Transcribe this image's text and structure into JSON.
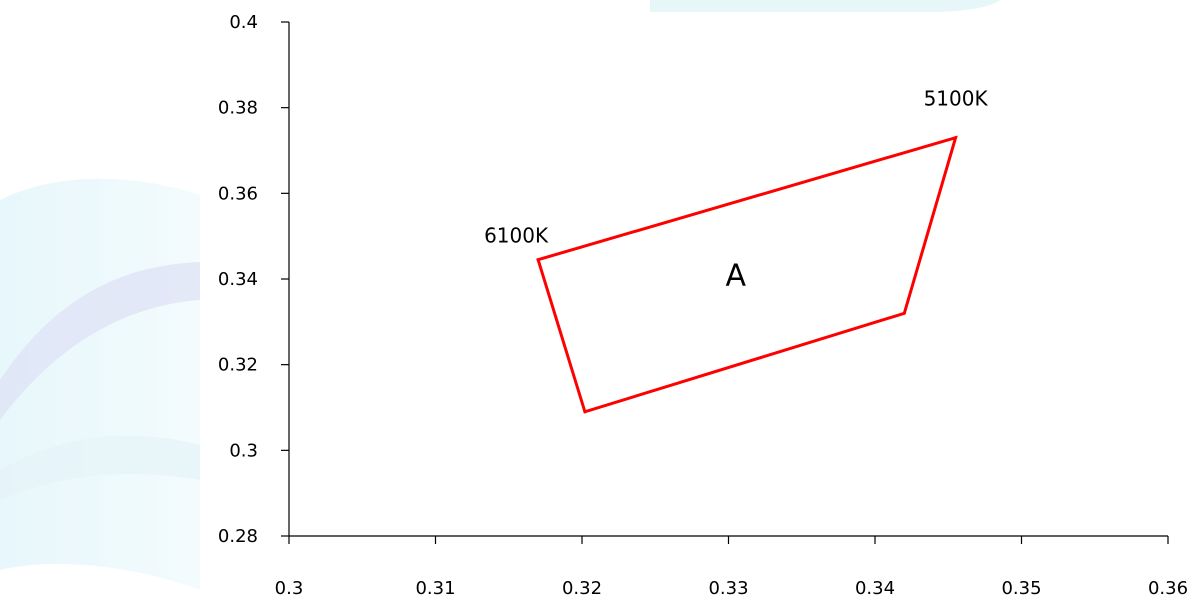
{
  "chart_data": {
    "type": "line",
    "title": "",
    "xlabel": "",
    "ylabel": "",
    "xlim": [
      0.3,
      0.36
    ],
    "ylim": [
      0.28,
      0.4
    ],
    "x_ticks": [
      "0.3",
      "0.31",
      "0.32",
      "0.33",
      "0.34",
      "0.35",
      "0.36"
    ],
    "y_ticks": [
      "0.28",
      "0.3",
      "0.32",
      "0.34",
      "0.36",
      "0.38",
      "0.4"
    ],
    "grid": false,
    "series": [
      {
        "color": "#ff0000",
        "closed": true,
        "points": [
          {
            "x": 0.317,
            "y": 0.3445
          },
          {
            "x": 0.3455,
            "y": 0.373
          },
          {
            "x": 0.342,
            "y": 0.332
          },
          {
            "x": 0.3202,
            "y": 0.309
          }
        ]
      }
    ],
    "annotations": [
      {
        "text": "6100K",
        "x": 0.3155,
        "y": 0.3485
      },
      {
        "text": "5100K",
        "x": 0.3455,
        "y": 0.3805
      },
      {
        "text": "A",
        "x": 0.3305,
        "y": 0.3385
      }
    ]
  }
}
